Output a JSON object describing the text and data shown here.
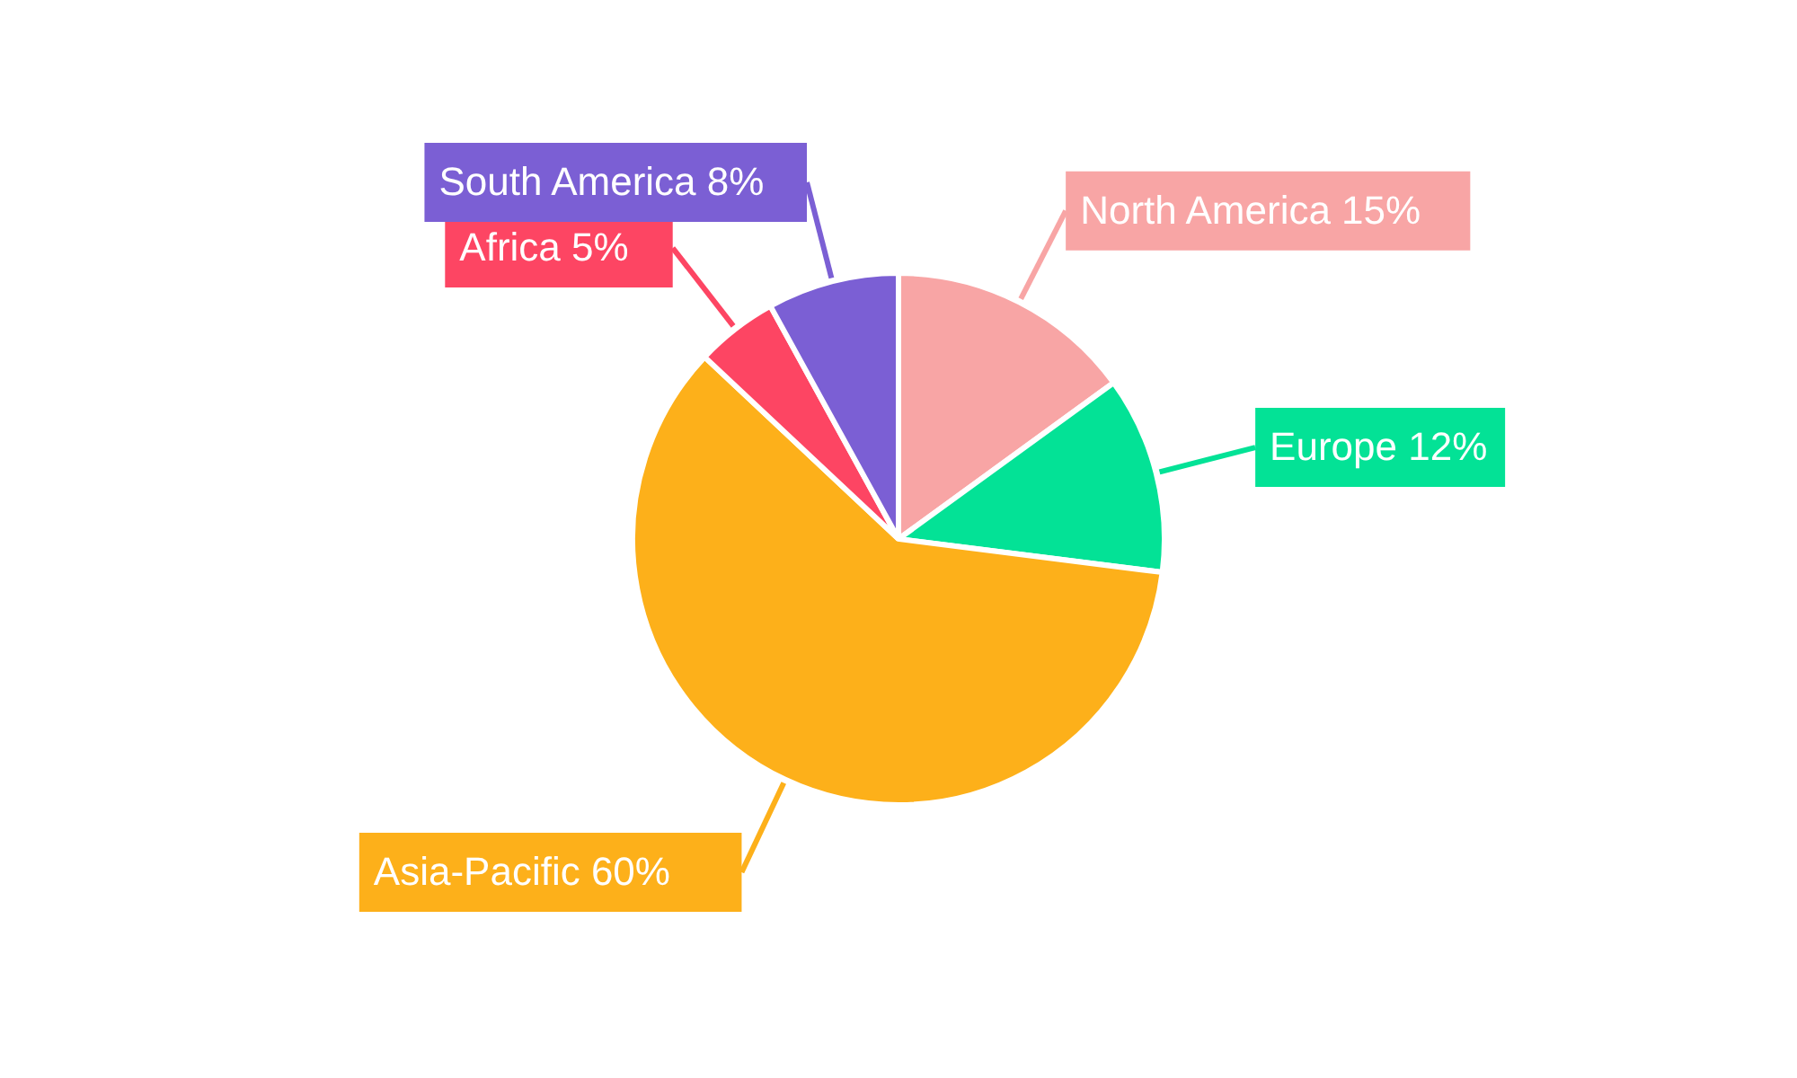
{
  "chart_data": {
    "type": "pie",
    "categories": [
      "North America",
      "Europe",
      "Asia-Pacific",
      "Africa",
      "South America"
    ],
    "values": [
      15,
      12,
      60,
      5,
      8
    ],
    "colors": [
      "#f8a5a5",
      "#03e296",
      "#fdb01a",
      "#fd4563",
      "#7b5fd4"
    ],
    "value_labels": [
      "15%",
      "12%",
      "60%",
      "5%",
      "8%"
    ]
  }
}
